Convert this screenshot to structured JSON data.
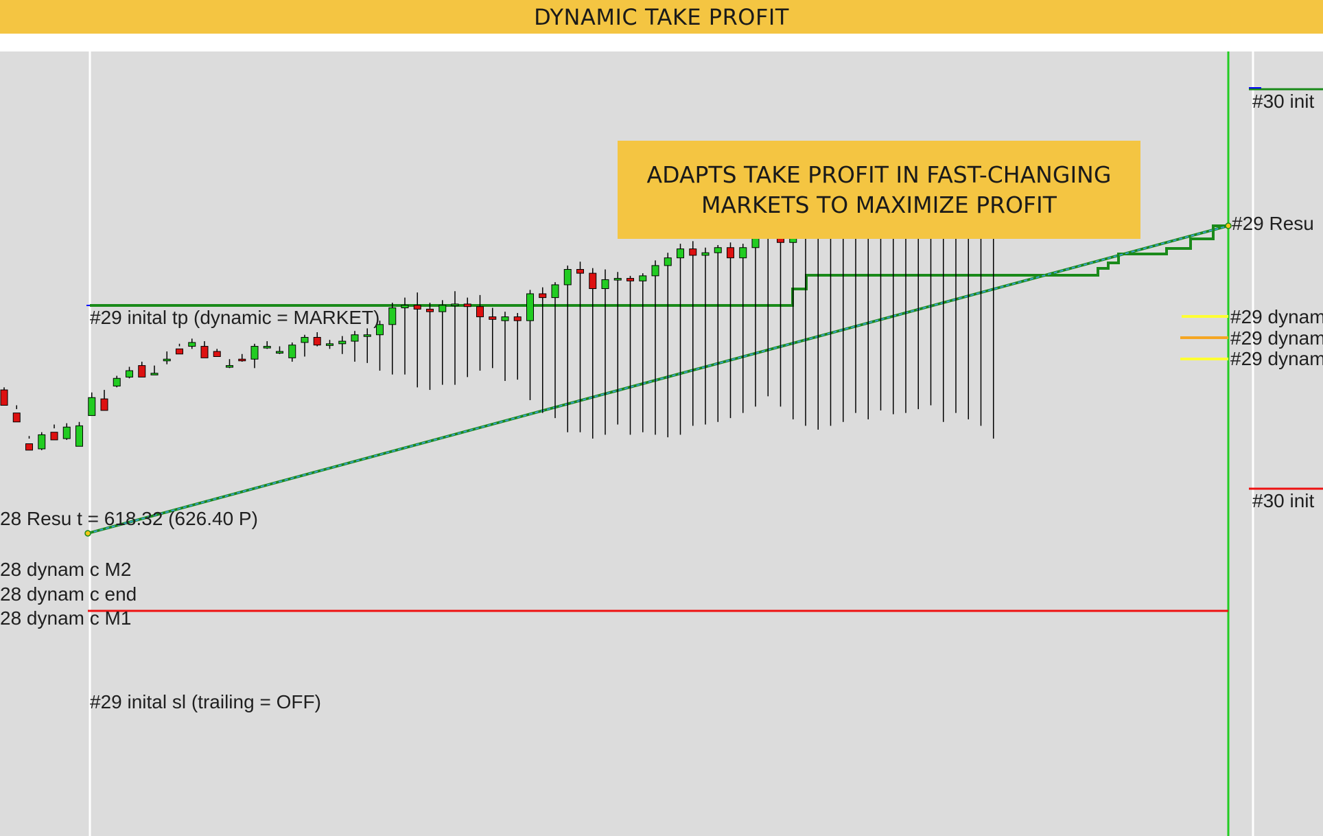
{
  "banner": {
    "title": "DYNAMIC TAKE PROFIT"
  },
  "callout": {
    "text": "ADAPTS TAKE PROFIT IN FAST-CHANGING\nMARKETS TO MAXIMIZE PROFIT"
  },
  "colors": {
    "banner_bg": "#f4c542",
    "chart_bg": "#dcdcdc",
    "candle_up": "#22cc22",
    "candle_down": "#dd1111",
    "take_profit_line": "#1a8a1a",
    "stop_loss_line": "#ee1111",
    "trend_line": "#3aa0d8",
    "marker_yellow": "#ffff33",
    "marker_orange": "#f5a623"
  },
  "chart_data": {
    "type": "candlestick",
    "grid": false,
    "legend": "none",
    "labels": {
      "tp29": "#29 inital tp (dynamic = MARKET)",
      "sl29": "#29 inital sl (trailing = OFF)",
      "res28": "28 Resu t = 618.32 (626.40 P)",
      "dyn28_m2": "28 dynam c M2",
      "dyn28_end": "28 dynam c end",
      "dyn28_m1": "28 dynam c M1",
      "res29": "#29 Resu",
      "dyn29_a": "#29 dynam",
      "dyn29_b": "#29 dynam",
      "dyn29_c": "#29 dynam",
      "init30_top": "#30 init",
      "init30_bottom": "#30 init"
    },
    "candles": [
      [
        620,
        618,
        606,
        616
      ],
      [
        606,
        600,
        593,
        603
      ],
      [
        582,
        576,
        571,
        580
      ],
      [
        571,
        572,
        583,
        585
      ],
      [
        588,
        585,
        579,
        591
      ],
      [
        579,
        580,
        589,
        592
      ],
      [
        575,
        574,
        590,
        593
      ],
      [
        600,
        598,
        612,
        616
      ],
      [
        610,
        611,
        602,
        618
      ],
      [
        620,
        621,
        627,
        629
      ],
      [
        627,
        628,
        633,
        636
      ],
      [
        636,
        637,
        628,
        640
      ],
      [
        630,
        631,
        631,
        637
      ],
      [
        638,
        642,
        642,
        648
      ],
      [
        652,
        650,
        646,
        654
      ],
      [
        650,
        652,
        655,
        658
      ],
      [
        647,
        652,
        643,
        656
      ],
      [
        646,
        648,
        644,
        650
      ],
      [
        635,
        637,
        637,
        642
      ],
      [
        640,
        642,
        641,
        646
      ],
      [
        635,
        642,
        652,
        654
      ],
      [
        650,
        652,
        652,
        656
      ],
      [
        646,
        648,
        648,
        652
      ],
      [
        640,
        643,
        653,
        655
      ],
      [
        644,
        655,
        659,
        661
      ],
      [
        652,
        659,
        653,
        663
      ],
      [
        650,
        653,
        654,
        657
      ],
      [
        646,
        654,
        656,
        660
      ],
      [
        640,
        656,
        661,
        664
      ],
      [
        639,
        661,
        661,
        666
      ],
      [
        633,
        661,
        669,
        672
      ],
      [
        630,
        669,
        682,
        686
      ],
      [
        630,
        682,
        684,
        690
      ],
      [
        620,
        684,
        681,
        694
      ],
      [
        618,
        681,
        679,
        686
      ],
      [
        622,
        679,
        684,
        688
      ],
      [
        622,
        684,
        685,
        695
      ],
      [
        628,
        685,
        683,
        690
      ],
      [
        633,
        683,
        675,
        692
      ],
      [
        635,
        675,
        673,
        682
      ],
      [
        625,
        672,
        675,
        679
      ],
      [
        626,
        675,
        672,
        678
      ],
      [
        610,
        672,
        693,
        696
      ],
      [
        600,
        693,
        690,
        698
      ],
      [
        596,
        690,
        700,
        702
      ],
      [
        585,
        700,
        712,
        715
      ],
      [
        585,
        712,
        709,
        718
      ],
      [
        580,
        709,
        697,
        713
      ],
      [
        583,
        697,
        704,
        712
      ],
      [
        591,
        704,
        705,
        710
      ],
      [
        583,
        705,
        703,
        707
      ],
      [
        585,
        703,
        707,
        709
      ],
      [
        583,
        707,
        715,
        719
      ],
      [
        581,
        715,
        721,
        725
      ],
      [
        583,
        721,
        728,
        732
      ],
      [
        590,
        728,
        723,
        734
      ],
      [
        591,
        723,
        725,
        729
      ],
      [
        593,
        725,
        729,
        731
      ],
      [
        596,
        729,
        721,
        733
      ],
      [
        600,
        721,
        729,
        732
      ],
      [
        605,
        729,
        743,
        747
      ],
      [
        613,
        743,
        745,
        751
      ],
      [
        605,
        745,
        733,
        750
      ],
      [
        595,
        733,
        747,
        749
      ],
      [
        590,
        747,
        760,
        764
      ],
      [
        587,
        760,
        763,
        766
      ],
      [
        590,
        763,
        766,
        770
      ],
      [
        593,
        766,
        764,
        769
      ],
      [
        600,
        764,
        766,
        768
      ],
      [
        595,
        766,
        759,
        770
      ],
      [
        602,
        759,
        762,
        764
      ],
      [
        599,
        762,
        757,
        766
      ],
      [
        600,
        757,
        758,
        763
      ],
      [
        603,
        758,
        758,
        762
      ],
      [
        606,
        758,
        754,
        762
      ],
      [
        593,
        754,
        775,
        790
      ],
      [
        600,
        775,
        781,
        784
      ],
      [
        595,
        781,
        783,
        787
      ],
      [
        590,
        783,
        750,
        785
      ],
      [
        580,
        755,
        770,
        771
      ]
    ]
  }
}
